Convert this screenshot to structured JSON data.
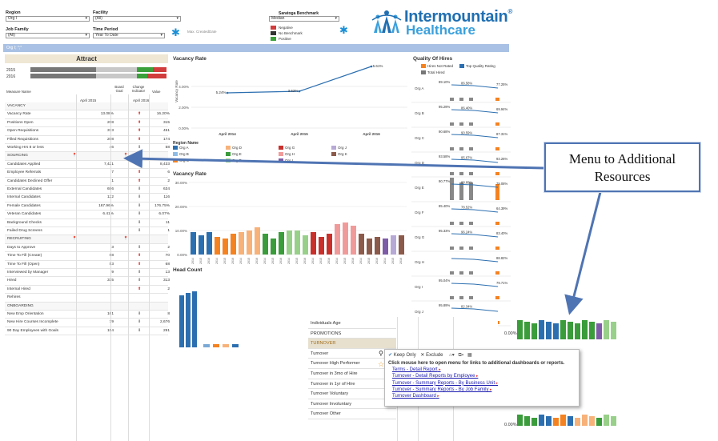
{
  "filters": {
    "region_label": "Region",
    "region_value": "Org I",
    "facility_label": "Facility",
    "facility_value": "(All)",
    "jobfamily_label": "Job Family",
    "jobfamily_value": "(All)",
    "timeperiod_label": "Time Period",
    "timeperiod_value": "Year To Date",
    "max_date": "Max. CreatedDate"
  },
  "benchmark": {
    "label": "Saratoga Benchmark",
    "value": "Median",
    "items": [
      {
        "label": "Negative",
        "color": "#d23c3c"
      },
      {
        "label": "No Benchmark",
        "color": "#333333"
      },
      {
        "label": "Positive",
        "color": "#3aa13a"
      }
    ]
  },
  "logo": {
    "line1": "Intermountain",
    "line2": "Healthcare",
    "reg": "®"
  },
  "bar_text": "Org I; °;°",
  "attract": {
    "title": "Attract",
    "y1": "2015",
    "y2": "2016"
  },
  "table": {
    "col_name": "Measure Name",
    "col_goal": "Board Goal",
    "col_change": "Change Indicator",
    "col_value": "Value",
    "sub1": "April 2015",
    "sub2": "April 2016"
  },
  "rows": [
    {
      "n": "VACANCY",
      "v1": "",
      "i": "",
      "v2": "",
      "s": true
    },
    {
      "n": "Vacancy Rate",
      "v1": "13.08%",
      "i": "up",
      "v2": "16.20%"
    },
    {
      "n": "Positions Open",
      "v1": "208",
      "i": "up",
      "v2": "315"
    },
    {
      "n": "Open Requisitions",
      "v1": "373",
      "i": "up",
      "v2": "451"
    },
    {
      "n": "Filled Requisitions",
      "v1": "208",
      "i": "up",
      "v2": "174"
    },
    {
      "n": "Working Hrs 8 or less",
      "v1": "46",
      "i": "dn",
      "v2": "58"
    },
    {
      "n": "SOURCING",
      "v1": "",
      "i": "",
      "v2": "",
      "s": true,
      "pin": true
    },
    {
      "n": "Candidates Applied",
      "v1": "7,421",
      "i": "dn",
      "v2": "8,433"
    },
    {
      "n": "Employee Referrals",
      "v1": "7",
      "i": "up",
      "v2": "6"
    },
    {
      "n": "Candidates Declined Offer",
      "v1": "1",
      "i": "up",
      "v2": "2"
    },
    {
      "n": "External Candidates",
      "v1": "696",
      "i": "dn",
      "v2": "634"
    },
    {
      "n": "Internal Candidates",
      "v1": "122",
      "i": "dn",
      "v2": "116"
    },
    {
      "n": "Female Candidates",
      "v1": "167.96%",
      "i": "dn",
      "v2": "176.75%"
    },
    {
      "n": "Veteran Candidates",
      "v1": "6.41%",
      "i": "dn",
      "v2": "6.07%"
    },
    {
      "n": "Background Checks",
      "v1": "",
      "i": "dn",
      "v2": "11"
    },
    {
      "n": "Failed Drug Screens",
      "v1": "",
      "i": "dn",
      "v2": "1"
    },
    {
      "n": "RECRUITING",
      "v1": "",
      "i": "",
      "v2": "",
      "s": true,
      "pin": true
    },
    {
      "n": "Days to Approve",
      "v1": "3",
      "i": "dn",
      "v2": "2"
    },
    {
      "n": "Time To Fill (Create)",
      "v1": "58",
      "i": "up",
      "v2": "70"
    },
    {
      "n": "Time To Fill (Open)",
      "v1": "53",
      "i": "up",
      "v2": "68"
    },
    {
      "n": "Interviewed by Manager",
      "v1": "9",
      "i": "dn",
      "v2": "13"
    },
    {
      "n": "Hired",
      "v1": "315",
      "i": "dn",
      "v2": "313"
    },
    {
      "n": "Internal Hired",
      "v1": "",
      "i": "up",
      "v2": "2"
    },
    {
      "n": "Rehires",
      "v1": "",
      "i": "",
      "v2": ""
    },
    {
      "n": "ONBOARDING",
      "v1": "",
      "i": "",
      "v2": "",
      "s": true
    },
    {
      "n": "New Emp Orientation",
      "v1": "161",
      "i": "dn",
      "v2": "8"
    },
    {
      "n": "New Hire Courses Incomplete",
      "v1": "79",
      "i": "dn",
      "v2": "2,676"
    },
    {
      "n": "90 Day Employees with Goals",
      "v1": "154",
      "i": "dn",
      "v2": "291"
    }
  ],
  "vacancy": {
    "title": "Vacancy Rate",
    "ylabel": "Vacancy Rate",
    "yticks": [
      "0.00%",
      "2.00%",
      "4.00%"
    ],
    "labels": [
      "5.24%",
      "3.62%",
      "5.61%"
    ],
    "xticks": [
      "April 2014",
      "April 2015",
      "April 2016"
    ]
  },
  "region": {
    "title": "Region Name",
    "items": [
      {
        "l": "Org A",
        "c": "#2c6fb0"
      },
      {
        "l": "Org D",
        "c": "#f7b27a"
      },
      {
        "l": "Org G",
        "c": "#c9302c"
      },
      {
        "l": "Org J",
        "c": "#b7a9d6"
      },
      {
        "l": "Org B",
        "c": "#8fbce6"
      },
      {
        "l": "Org E",
        "c": "#3a9c3a"
      },
      {
        "l": "Org H",
        "c": "#f19a9a"
      },
      {
        "l": "Org K",
        "c": "#8c5a4a"
      },
      {
        "l": "Org C",
        "c": "#f58220"
      },
      {
        "l": "Org F",
        "c": "#98d08a"
      },
      {
        "l": "Org I",
        "c": "#7d5ba6"
      }
    ]
  },
  "vacancy2": {
    "title": "Vacancy Rate",
    "yticks": [
      "30.00%",
      "20.00%",
      "10.00%",
      "0.00%"
    ]
  },
  "headcount": {
    "title": "Head Count"
  },
  "quality": {
    "title": "Quality Of Hires",
    "legend": [
      "Hires Not Rated",
      "Top Quality Rating",
      "Total Hired"
    ],
    "orgs": [
      {
        "o": "Org A",
        "a": "89.10%",
        "b": "86.58%",
        "c": "77.25%"
      },
      {
        "o": "Org B",
        "a": "95.29%",
        "b": "86.40%",
        "c": "69.94%"
      },
      {
        "o": "Org C",
        "a": "90.68%",
        "b": "90.59%",
        "c": "87.31%"
      },
      {
        "o": "Org D",
        "a": "93.58%",
        "b": "95.67%",
        "c": "93.26%"
      },
      {
        "o": "Org E",
        "a": "90.77%",
        "b": "88.89%",
        "c": "79.08%"
      },
      {
        "o": "Org F",
        "a": "85.40%",
        "b": "78.52%",
        "c": "64.39%"
      },
      {
        "o": "Org G",
        "a": "95.33%",
        "b": "96.24%",
        "c": "83.40%"
      },
      {
        "o": "Org H",
        "a": "",
        "b": "",
        "c": "88.82%"
      },
      {
        "o": "Org I",
        "a": "95.04%",
        "b": "",
        "c": "79.71%"
      },
      {
        "o": "Org J",
        "a": "95.89%",
        "b": "82.34%",
        "c": ""
      }
    ]
  },
  "overlay_rows": [
    "Individuals Age",
    "PROMOTIONS",
    "TURNOVER",
    "Turnover",
    "Turnover High Performer",
    "Turnover in 3mo of Hire",
    "Turnover in 1yr of Hire",
    "Turnover Voluntary",
    "Turnover Involuntary",
    "Turnover Other"
  ],
  "menu": {
    "keep": "Keep Only",
    "exclude": "Exclude",
    "instruction": "Click mouse here to open menu for links to additional dashboards or reports.",
    "links": [
      "Terms - Detail Report",
      "Turnover - Detail Reports by Employee",
      "Turnover - Summary Reports - By Business Unit",
      "Turnover - Summary Reports - By Job Family",
      "Turnover Dashboard"
    ]
  },
  "callout": {
    "line1": "Menu to Additional",
    "line2": "Resources"
  },
  "right_pct": {
    "a": "0.00%",
    "b": "0.00%"
  },
  "colors": {
    "arrow": "#4f74b3",
    "line": "#2c6fb0"
  }
}
